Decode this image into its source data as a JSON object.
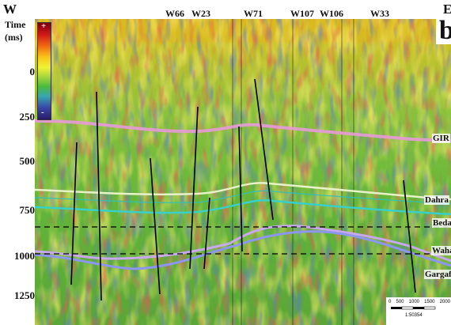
{
  "header": {
    "west": "W",
    "east": "E",
    "panel_letter": "b"
  },
  "time_axis": {
    "label_line1": "Time",
    "label_line2": "(ms)",
    "ticks": [
      "0",
      "250",
      "500",
      "750",
      "1000",
      "1250"
    ]
  },
  "colorbar": {
    "top": "+",
    "bottom": "-"
  },
  "wells": [
    "W66",
    "W23",
    "W71",
    "W107",
    "W106",
    "W33"
  ],
  "horizons": [
    {
      "name": "GIR",
      "color": "#e79ad8"
    },
    {
      "name": "Dahra",
      "color": "#e8f2c8"
    },
    {
      "name": "Beda",
      "color": "#38d0c8"
    },
    {
      "name": "Waha",
      "color": "#c8a8ec"
    },
    {
      "name": "Gargaf",
      "color": "#9aa2ee"
    }
  ],
  "scale": {
    "ticks": [
      "0",
      "500",
      "1000",
      "1500",
      "2000"
    ],
    "ratio": "1:50354"
  }
}
